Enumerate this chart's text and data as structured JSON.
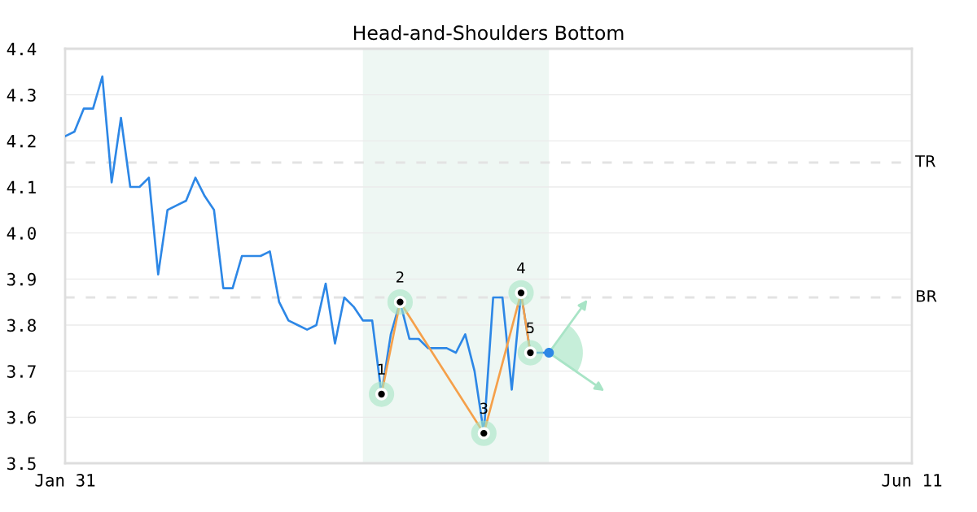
{
  "chart_data": {
    "type": "line",
    "title": "Head-and-Shoulders Bottom",
    "categories": [
      "Jan 31",
      null,
      null,
      null,
      null,
      null,
      null,
      null,
      null,
      null,
      null,
      null,
      null,
      null,
      null,
      null,
      null,
      null,
      null,
      null,
      null,
      null,
      null,
      null,
      null,
      null,
      null,
      null,
      null,
      null,
      null,
      null,
      null,
      null,
      null,
      null,
      null,
      null,
      null,
      null,
      null,
      null,
      null,
      null,
      null,
      null,
      null,
      null,
      null,
      null,
      null,
      null,
      null,
      null,
      null,
      null,
      null,
      null,
      null,
      null,
      null,
      null,
      null,
      null,
      null,
      null,
      null,
      null,
      null,
      null,
      null,
      null,
      null,
      null,
      null,
      null,
      null,
      null,
      null,
      null,
      null,
      null,
      null,
      null,
      null,
      null,
      null,
      null,
      null,
      null,
      null,
      "Jun 11"
    ],
    "ylim": [
      3.5,
      4.4
    ],
    "yticks": [
      3.5,
      3.6,
      3.7,
      3.8,
      3.9,
      {
        "value": 4.0,
        "label": "4.0"
      },
      4.1,
      4.2,
      4.3,
      4.4
    ],
    "grid": "y",
    "series": [
      {
        "color": "#2d87e6",
        "values": [
          4.21,
          4.22,
          4.27,
          4.27,
          4.34,
          4.11,
          4.25,
          4.1,
          4.1,
          4.12,
          3.91,
          4.05,
          4.06,
          4.07,
          4.12,
          4.08,
          4.05,
          3.88,
          3.88,
          3.95,
          3.95,
          3.95,
          3.96,
          3.85,
          3.81,
          3.8,
          3.79,
          3.8,
          3.89,
          3.76,
          3.86,
          3.84,
          3.81,
          3.81,
          3.65,
          3.78,
          3.85,
          3.77,
          3.77,
          3.75,
          3.75,
          3.75,
          3.74,
          3.78,
          3.7,
          3.565,
          3.86,
          3.86,
          3.66,
          3.87,
          3.74,
          3.74,
          3.74,
          null,
          null,
          null,
          null,
          null,
          null,
          null,
          null,
          null,
          null,
          null,
          null,
          null,
          null,
          null,
          null,
          null,
          null,
          null,
          null,
          null,
          null,
          null,
          null,
          null,
          null,
          null,
          null,
          null,
          null,
          null,
          null,
          null,
          null,
          null,
          null,
          null,
          null,
          null
        ]
      },
      {
        "color": "#f5a04a",
        "marker": "circle",
        "values": [
          null,
          null,
          null,
          null,
          null,
          null,
          null,
          null,
          null,
          null,
          null,
          null,
          null,
          null,
          null,
          null,
          null,
          null,
          null,
          null,
          null,
          null,
          null,
          null,
          null,
          null,
          null,
          null,
          null,
          null,
          null,
          null,
          null,
          null,
          3.65,
          null,
          3.85,
          null,
          null,
          null,
          null,
          null,
          null,
          null,
          null,
          3.565,
          null,
          null,
          null,
          3.87,
          3.74,
          null,
          null,
          null,
          null,
          null,
          null,
          null,
          null,
          null,
          null,
          null,
          null,
          null,
          null,
          null,
          null,
          null,
          null,
          null,
          null,
          null,
          null,
          null,
          null,
          null,
          null,
          null,
          null,
          null,
          null,
          null,
          null,
          null,
          null,
          null,
          null,
          null,
          null,
          null,
          null,
          null
        ]
      },
      {
        "type": "scatter",
        "color": "#2d87e6",
        "values": [
          null,
          null,
          null,
          null,
          null,
          null,
          null,
          null,
          null,
          null,
          null,
          null,
          null,
          null,
          null,
          null,
          null,
          null,
          null,
          null,
          null,
          null,
          null,
          null,
          null,
          null,
          null,
          null,
          null,
          null,
          null,
          null,
          null,
          null,
          null,
          null,
          null,
          null,
          null,
          null,
          null,
          null,
          null,
          null,
          null,
          null,
          null,
          null,
          null,
          null,
          null,
          null,
          3.74,
          null,
          null,
          null,
          null,
          null,
          null,
          null,
          null,
          null,
          null,
          null,
          null,
          null,
          null,
          null,
          null,
          null,
          null,
          null,
          null,
          null,
          null,
          null,
          null,
          null,
          null,
          null,
          null,
          null,
          null,
          null,
          null,
          null,
          null,
          null,
          null,
          null,
          null,
          null
        ]
      }
    ],
    "ref_lines": [
      {
        "axis": "y",
        "value": 4.153,
        "label": "TR",
        "color": "#e3e3e3",
        "line_style": "dashed"
      },
      {
        "axis": "y",
        "value": 3.86,
        "label": "BR",
        "color": "#e3e3e3",
        "line_style": "dashed"
      }
    ],
    "annotations": [
      "1",
      "2",
      "3",
      "4",
      "5"
    ]
  }
}
